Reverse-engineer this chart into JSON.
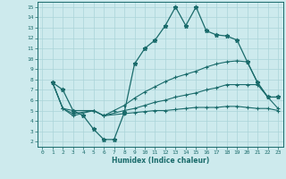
{
  "xlabel": "Humidex (Indice chaleur)",
  "bg_color": "#cdeaed",
  "grid_color": "#aad4d8",
  "line_color": "#1a6b6b",
  "xlim": [
    -0.5,
    23.5
  ],
  "ylim": [
    1.5,
    15.5
  ],
  "xticks": [
    0,
    1,
    2,
    3,
    4,
    5,
    6,
    7,
    8,
    9,
    10,
    11,
    12,
    13,
    14,
    15,
    16,
    17,
    18,
    19,
    20,
    21,
    22,
    23
  ],
  "yticks": [
    2,
    3,
    4,
    5,
    6,
    7,
    8,
    9,
    10,
    11,
    12,
    13,
    14,
    15
  ],
  "line1_x": [
    1,
    2,
    3,
    4,
    5,
    6,
    7,
    8,
    9,
    10,
    11,
    12,
    13,
    14,
    15,
    16,
    17,
    18,
    19,
    20,
    21,
    22,
    23
  ],
  "line1_y": [
    7.7,
    7.0,
    5.0,
    4.5,
    3.2,
    2.2,
    2.2,
    4.8,
    9.5,
    11.0,
    11.8,
    13.2,
    15.0,
    13.2,
    15.0,
    12.7,
    12.3,
    12.2,
    11.8,
    9.7,
    7.7,
    6.3,
    6.3
  ],
  "line2_x": [
    1,
    2,
    3,
    5,
    6,
    7,
    8,
    9,
    10,
    11,
    12,
    13,
    14,
    15,
    16,
    17,
    18,
    19,
    20,
    21,
    22,
    23
  ],
  "line2_y": [
    7.7,
    5.2,
    5.0,
    5.0,
    4.5,
    5.0,
    5.5,
    6.2,
    6.8,
    7.3,
    7.8,
    8.2,
    8.5,
    8.8,
    9.2,
    9.5,
    9.7,
    9.8,
    9.7,
    7.7,
    6.3,
    6.3
  ],
  "line3_x": [
    1,
    2,
    3,
    5,
    6,
    8,
    9,
    10,
    11,
    12,
    13,
    14,
    15,
    16,
    17,
    18,
    19,
    20,
    21,
    22,
    23
  ],
  "line3_y": [
    7.7,
    5.2,
    4.7,
    5.0,
    4.5,
    5.0,
    5.2,
    5.5,
    5.8,
    6.0,
    6.3,
    6.5,
    6.7,
    7.0,
    7.2,
    7.5,
    7.5,
    7.5,
    7.5,
    6.3,
    5.2
  ],
  "line4_x": [
    1,
    2,
    3,
    5,
    6,
    8,
    9,
    10,
    11,
    12,
    13,
    14,
    15,
    16,
    17,
    18,
    19,
    20,
    21,
    22,
    23
  ],
  "line4_y": [
    7.7,
    5.2,
    4.5,
    5.0,
    4.5,
    4.7,
    4.8,
    4.9,
    5.0,
    5.0,
    5.1,
    5.2,
    5.3,
    5.3,
    5.3,
    5.4,
    5.4,
    5.3,
    5.2,
    5.2,
    5.0
  ]
}
